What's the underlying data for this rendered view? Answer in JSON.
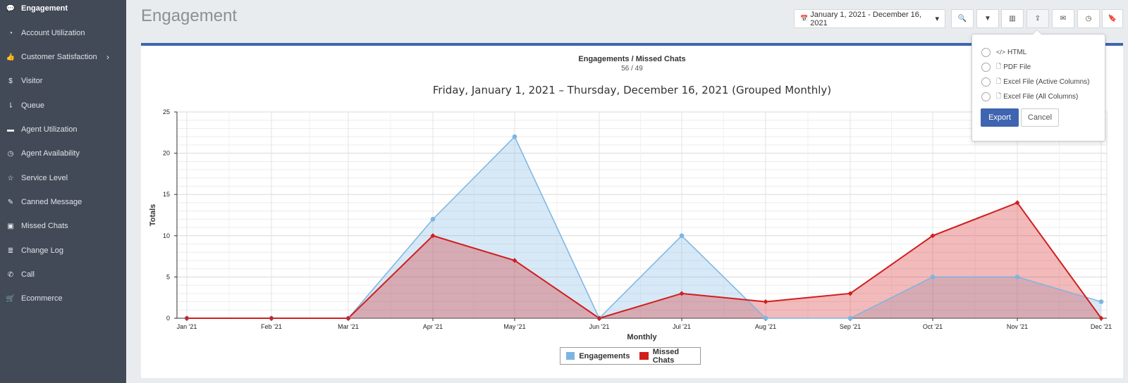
{
  "sidebar": {
    "items": [
      {
        "label": "Engagement",
        "icon": "chat-bubble-icon",
        "glyph": "💬"
      },
      {
        "label": "Account Utilization",
        "icon": "dashboard-icon",
        "glyph": "◔"
      },
      {
        "label": "Customer Satisfaction",
        "icon": "thumbs-up-icon",
        "glyph": "👍"
      },
      {
        "label": "Visitor",
        "icon": "dollar-icon",
        "glyph": "$"
      },
      {
        "label": "Queue",
        "icon": "sort-amount-icon",
        "glyph": "⇂"
      },
      {
        "label": "Agent Utilization",
        "icon": "credit-card-icon",
        "glyph": "▬"
      },
      {
        "label": "Agent Availability",
        "icon": "clock-icon",
        "glyph": "◷"
      },
      {
        "label": "Service Level",
        "icon": "star-icon",
        "glyph": "☆"
      },
      {
        "label": "Canned Message",
        "icon": "edit-icon",
        "glyph": "✎"
      },
      {
        "label": "Missed Chats",
        "icon": "camera-icon",
        "glyph": "▣"
      },
      {
        "label": "Change Log",
        "icon": "database-icon",
        "glyph": "≣"
      },
      {
        "label": "Call",
        "icon": "phone-icon",
        "glyph": "✆"
      },
      {
        "label": "Ecommerce",
        "icon": "cart-icon",
        "glyph": "🛒"
      }
    ],
    "submenu_chevron": "›"
  },
  "header": {
    "title": "Engagement",
    "date_range": "January 1, 2021 - December 16, 2021",
    "date_icon": "📅",
    "caret": "▾",
    "tools": [
      {
        "name": "search-button",
        "glyph": "🔍"
      },
      {
        "name": "filter-button",
        "glyph": "▼"
      },
      {
        "name": "chart-button",
        "glyph": "▥"
      },
      {
        "name": "share-button",
        "glyph": "⇪"
      },
      {
        "name": "email-button",
        "glyph": "✉"
      },
      {
        "name": "history-button",
        "glyph": "◷"
      },
      {
        "name": "bookmark-button",
        "glyph": "🔖"
      }
    ]
  },
  "summary": {
    "title": "Engagements / Missed Chats",
    "values": "56 / 49"
  },
  "export_menu": {
    "options": [
      {
        "label": "HTML",
        "icon": "code-icon",
        "glyph": "</>"
      },
      {
        "label": "PDF File",
        "icon": "pdf-file-icon",
        "glyph": "🗋"
      },
      {
        "label": "Excel File (Active Columns)",
        "icon": "excel-file-icon",
        "glyph": "🗋"
      },
      {
        "label": "Excel File (All Columns)",
        "icon": "excel-file-icon",
        "glyph": "🗋"
      }
    ],
    "export_label": "Export",
    "cancel_label": "Cancel"
  },
  "chart_data": {
    "type": "area",
    "title": "Friday, January 1, 2021 – Thursday, December 16, 2021 (Grouped Monthly)",
    "xlabel": "Monthly",
    "ylabel": "Totals",
    "ylim": [
      0,
      25
    ],
    "yticks": [
      0,
      5,
      10,
      15,
      20,
      25
    ],
    "categories": [
      "Jan '21",
      "Feb '21",
      "Mar '21",
      "Apr '21",
      "May '21",
      "Jun '21",
      "Jul '21",
      "Aug '21",
      "Sep '21",
      "Oct '21",
      "Nov '21",
      "Dec '21"
    ],
    "series": [
      {
        "name": "Engagements",
        "color": "#7cb5e3",
        "values": [
          0,
          0,
          0,
          12,
          22,
          0,
          10,
          0,
          0,
          5,
          5,
          2
        ]
      },
      {
        "name": "Missed Chats",
        "color": "#d11e1e",
        "values": [
          0,
          0,
          0,
          10,
          7,
          0,
          3,
          2,
          3,
          10,
          14,
          0
        ]
      }
    ],
    "legend": "bottom-center",
    "grid": true
  }
}
